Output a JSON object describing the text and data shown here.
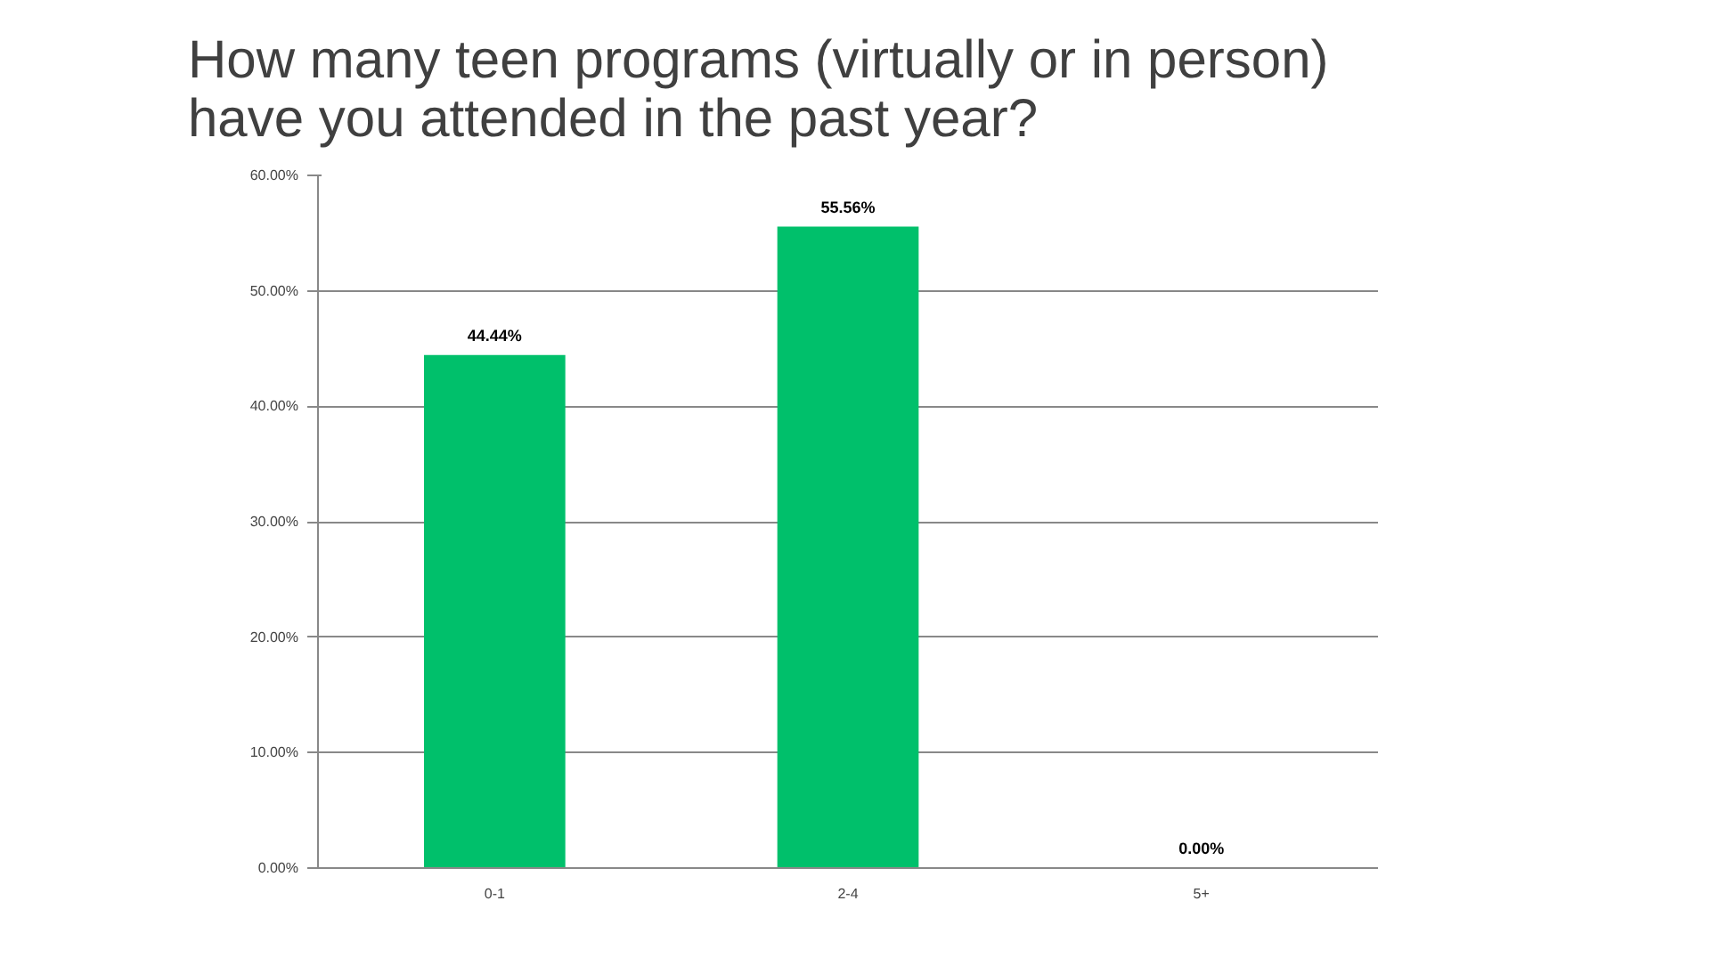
{
  "chart_data": {
    "type": "bar",
    "title": "How many teen programs (virtually or in person)\nhave you attended in the past year?",
    "categories": [
      "0-1",
      "2-4",
      "5+"
    ],
    "values": [
      44.44,
      55.56,
      0
    ],
    "value_labels": [
      "44.44%",
      "55.56%",
      "0.00%"
    ],
    "color": "#00c06b",
    "ylim": [
      0,
      60
    ],
    "yticks": [
      {
        "value": 0,
        "label": "0.00%"
      },
      {
        "value": 10,
        "label": "10.00%"
      },
      {
        "value": 20,
        "label": "20.00%"
      },
      {
        "value": 30,
        "label": "30.00%"
      },
      {
        "value": 40,
        "label": "40.00%"
      },
      {
        "value": 50,
        "label": "50.00%"
      },
      {
        "value": 60,
        "label": "60.00%"
      }
    ],
    "grid": "y"
  }
}
